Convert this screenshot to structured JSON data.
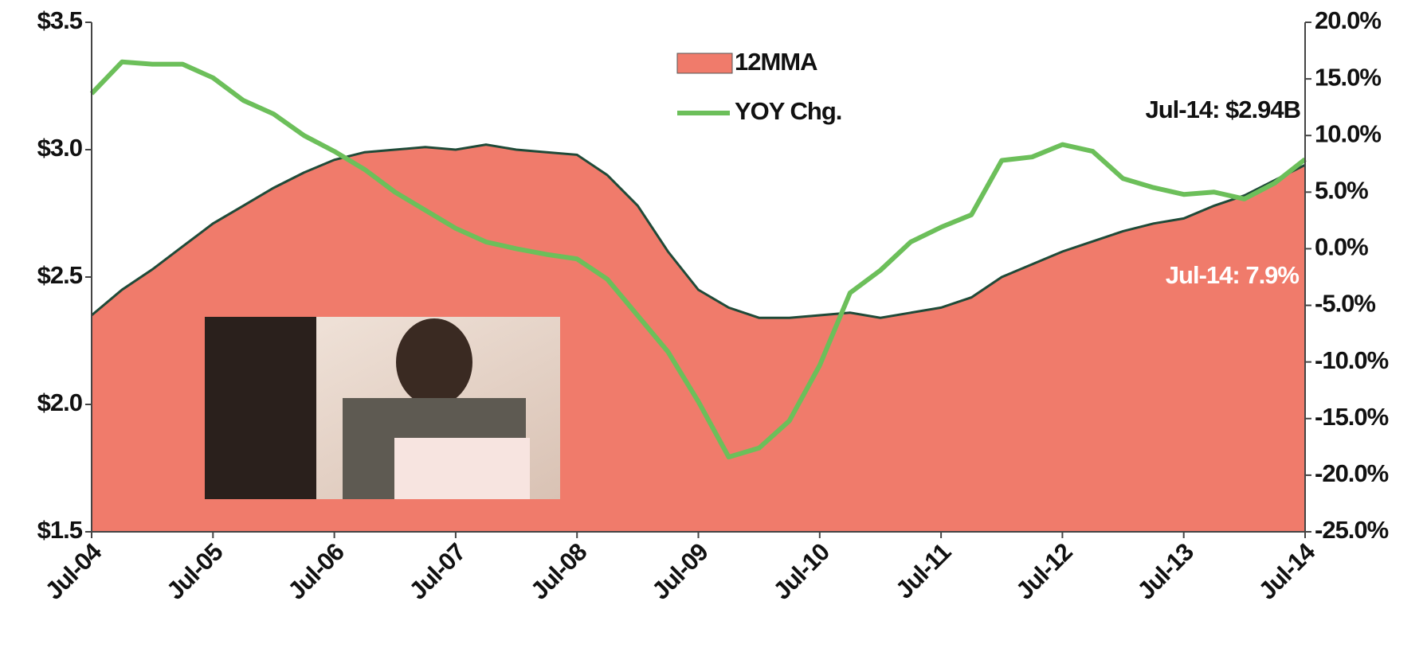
{
  "chart_data": {
    "type": "combo",
    "x": [
      "Jul-04",
      "Oct-04",
      "Jan-05",
      "Apr-05",
      "Jul-05",
      "Oct-05",
      "Jan-06",
      "Apr-06",
      "Jul-06",
      "Oct-06",
      "Jan-07",
      "Apr-07",
      "Jul-07",
      "Oct-07",
      "Jan-08",
      "Apr-08",
      "Jul-08",
      "Oct-08",
      "Jan-09",
      "Apr-09",
      "Jul-09",
      "Oct-09",
      "Jan-10",
      "Apr-10",
      "Jul-10",
      "Oct-10",
      "Jan-11",
      "Apr-11",
      "Jul-11",
      "Oct-11",
      "Jan-12",
      "Apr-12",
      "Jul-12",
      "Oct-12",
      "Jan-13",
      "Apr-13",
      "Jul-13",
      "Oct-13",
      "Jan-14",
      "Apr-14",
      "Jul-14"
    ],
    "xticks": [
      "Jul-04",
      "Jul-05",
      "Jul-06",
      "Jul-07",
      "Jul-08",
      "Jul-09",
      "Jul-10",
      "Jul-11",
      "Jul-12",
      "Jul-13",
      "Jul-14"
    ],
    "series": [
      {
        "name": "12MMA",
        "type": "area",
        "color": "#f07b6b",
        "line_color": "#1f4a38",
        "values": [
          2.35,
          2.45,
          2.53,
          2.62,
          2.71,
          2.78,
          2.85,
          2.91,
          2.96,
          2.99,
          3.0,
          3.01,
          3.0,
          3.02,
          3.0,
          2.99,
          2.98,
          2.9,
          2.78,
          2.6,
          2.45,
          2.38,
          2.34,
          2.34,
          2.35,
          2.36,
          2.34,
          2.36,
          2.38,
          2.42,
          2.5,
          2.55,
          2.6,
          2.64,
          2.68,
          2.71,
          2.73,
          2.78,
          2.82,
          2.88,
          2.94
        ]
      },
      {
        "name": "YOY Chg.",
        "type": "line",
        "axis": "y2",
        "color": "#6cbf5a",
        "values": [
          13.7,
          16.5,
          16.3,
          16.3,
          15.1,
          13.1,
          11.9,
          10.0,
          8.6,
          7.0,
          5.0,
          3.4,
          1.8,
          0.6,
          0.0,
          -0.5,
          -0.9,
          -2.7,
          -5.9,
          -9.1,
          -13.5,
          -18.4,
          -17.6,
          -15.2,
          -10.3,
          -3.9,
          -1.9,
          0.6,
          1.9,
          3.0,
          7.8,
          8.1,
          9.2,
          8.6,
          6.2,
          5.4,
          4.8,
          5.0,
          4.4,
          5.8,
          7.9
        ]
      }
    ],
    "ylim": [
      1.5,
      3.5
    ],
    "yticks": [
      {
        "value": 1.5,
        "label": "$1.5"
      },
      {
        "value": 2.0,
        "label": "$2.0"
      },
      {
        "value": 2.5,
        "label": "$2.5"
      },
      {
        "value": 3.0,
        "label": "$3.0"
      },
      {
        "value": 3.5,
        "label": "$3.5"
      }
    ],
    "y2lim": [
      -25,
      20
    ],
    "y2ticks": [
      {
        "value": -25,
        "label": "-25.0%"
      },
      {
        "value": -20,
        "label": "-20.0%"
      },
      {
        "value": -15,
        "label": "-15.0%"
      },
      {
        "value": -10,
        "label": "-10.0%"
      },
      {
        "value": -5,
        "label": "-5.0%"
      },
      {
        "value": 0,
        "label": "0.0%"
      },
      {
        "value": 5,
        "label": "5.0%"
      },
      {
        "value": 10,
        "label": "10.0%"
      },
      {
        "value": 15,
        "label": "15.0%"
      },
      {
        "value": 20,
        "label": "20.0%"
      }
    ],
    "annotations": [
      "Jul-14: $2.94B",
      "Jul-14: 7.9%"
    ],
    "grid": false
  }
}
